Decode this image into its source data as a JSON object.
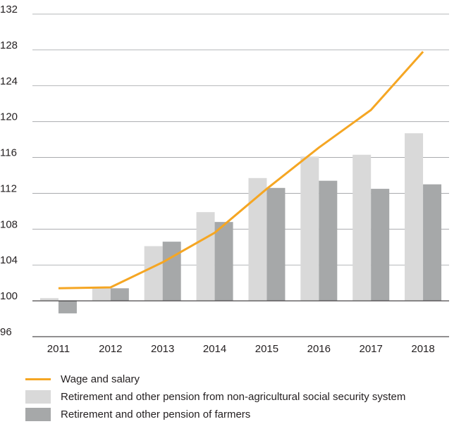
{
  "chart_data": {
    "type": "bar",
    "categories": [
      "2011",
      "2012",
      "2013",
      "2014",
      "2015",
      "2016",
      "2017",
      "2018"
    ],
    "series": [
      {
        "name": "Wage and salary",
        "kind": "line",
        "color": "#f5a623",
        "values": [
          101.4,
          101.5,
          104.3,
          107.6,
          112.5,
          117.1,
          121.3,
          127.8
        ]
      },
      {
        "name": "Retirement and other pension from non-agricultural social security system",
        "kind": "bar",
        "color": "#d9d9d9",
        "values": [
          100.3,
          101.5,
          106.1,
          109.9,
          113.7,
          116.1,
          116.3,
          118.7
        ]
      },
      {
        "name": "Retirement and other pension of farmers",
        "kind": "bar",
        "color": "#a6a8a9",
        "values": [
          98.6,
          101.4,
          106.6,
          108.8,
          112.6,
          113.4,
          112.5,
          113.0
        ]
      }
    ],
    "ylim": [
      96,
      132
    ],
    "yticks": [
      "96",
      "100",
      "104",
      "108",
      "112",
      "116",
      "120",
      "124",
      "128",
      "132"
    ],
    "baseline": 100,
    "grid": true,
    "legend_position": "bottom-left",
    "title": "",
    "xlabel": "",
    "ylabel": ""
  }
}
